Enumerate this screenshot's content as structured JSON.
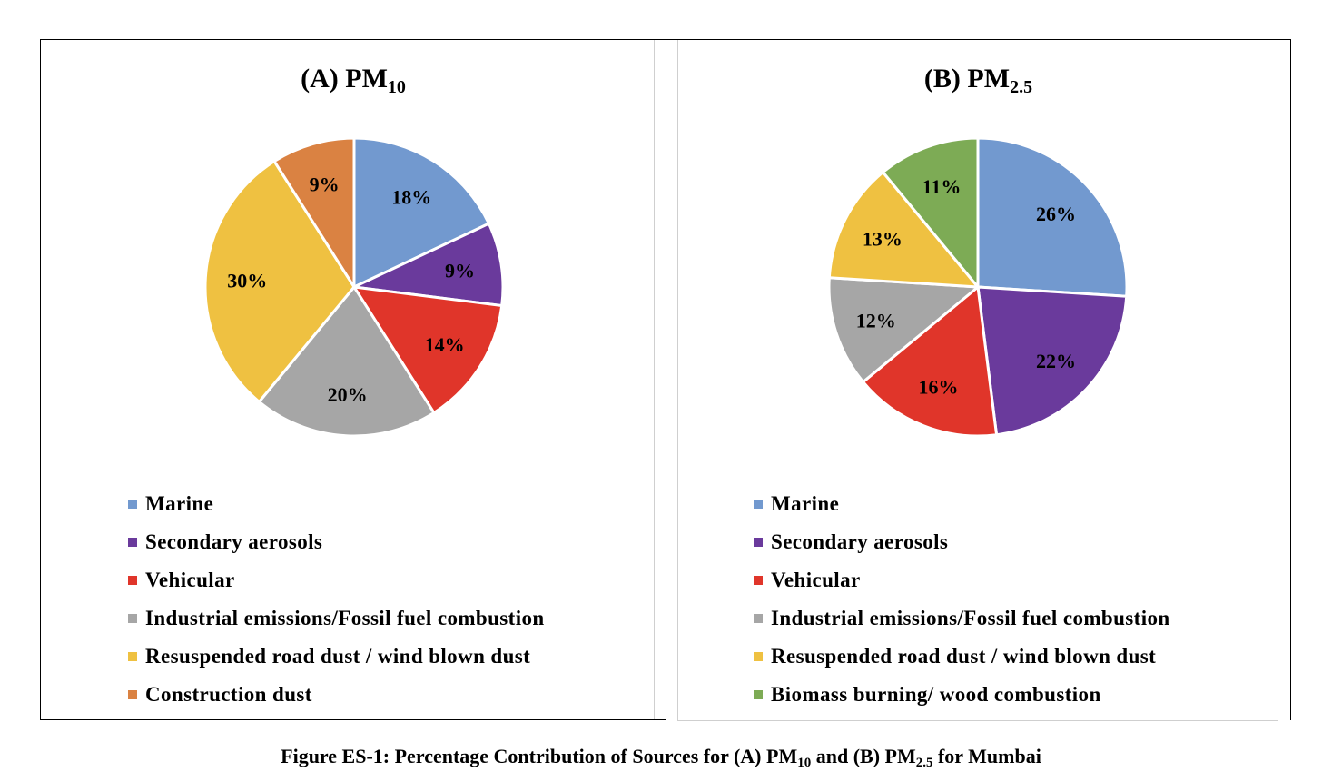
{
  "caption": {
    "prefix": "Figure ES-1: Percentage Contribution of Sources for (A) PM",
    "sub_a": "10",
    "middle": " and (B) PM",
    "sub_b": "2.5",
    "suffix": " for Mumbai"
  },
  "chart_data": [
    {
      "type": "pie",
      "title": "(A) PM",
      "title_sub": "10",
      "slices": [
        {
          "name": "Marine",
          "value": 18,
          "label": "18%",
          "color": "#7299cf"
        },
        {
          "name": "Secondary aerosols",
          "value": 9,
          "label": "9%",
          "color": "#6a3a9c"
        },
        {
          "name": "Vehicular",
          "value": 14,
          "label": "14%",
          "color": "#e0352a"
        },
        {
          "name": "Industrial emissions/Fossil fuel combustion",
          "value": 20,
          "label": "20%",
          "color": "#a6a6a6"
        },
        {
          "name": "Resuspended road dust / wind blown dust",
          "value": 30,
          "label": "30%",
          "color": "#efc141"
        },
        {
          "name": "Construction dust",
          "value": 9,
          "label": "9%",
          "color": "#da8242"
        }
      ],
      "legend_position": "bottom"
    },
    {
      "type": "pie",
      "title": "(B) PM",
      "title_sub": "2.5",
      "slices": [
        {
          "name": "Marine",
          "value": 26,
          "label": "26%",
          "color": "#7299cf"
        },
        {
          "name": "Secondary aerosols",
          "value": 22,
          "label": "22%",
          "color": "#6a3a9c"
        },
        {
          "name": "Vehicular",
          "value": 16,
          "label": "16%",
          "color": "#e0352a"
        },
        {
          "name": "Industrial emissions/Fossil fuel combustion",
          "value": 12,
          "label": "12%",
          "color": "#a6a6a6"
        },
        {
          "name": "Resuspended road dust / wind blown dust",
          "value": 13,
          "label": "13%",
          "color": "#efc141"
        },
        {
          "name": "Biomass burning/ wood combustion",
          "value": 11,
          "label": "11%",
          "color": "#7dab55"
        }
      ],
      "legend_position": "bottom"
    }
  ]
}
